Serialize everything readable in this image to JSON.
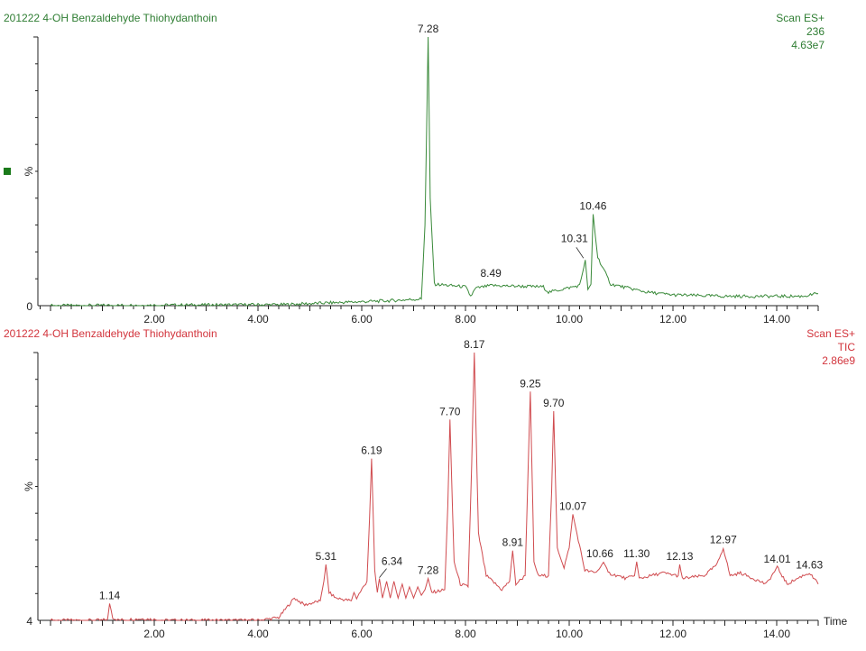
{
  "window": {
    "marker_color": "#1a7a1a"
  },
  "panels": [
    {
      "id": "top",
      "title": "201222 4-OH Benzaldehyde Thiohydanthoin",
      "header_right": [
        "Scan ES+",
        "236",
        "4.63e7"
      ],
      "color": "#3a8a3a",
      "text_color": "#2e7d32",
      "y_axis_label": "%",
      "y_origin_label": "0"
    },
    {
      "id": "bottom",
      "title": "201222 4-OH Benzaldehyde Thiohydanthoin",
      "header_right": [
        "Scan ES+",
        "TIC",
        "2.86e9"
      ],
      "color": "#d04b4f",
      "text_color": "#d2343c",
      "y_axis_label": "%",
      "y_origin_label": "4",
      "x_axis_title": "Time"
    }
  ],
  "chart_data": [
    {
      "type": "line",
      "title": "201222 4-OH Benzaldehyde Thiohydanthoin",
      "subtitle": "Scan ES+ 236 4.63e7",
      "xlabel": "Time",
      "ylabel": "%",
      "xlim": [
        0.0,
        15.0
      ],
      "ylim": [
        0,
        100
      ],
      "x_ticks": [
        "2.00",
        "4.00",
        "6.00",
        "8.00",
        "10.00",
        "12.00",
        "14.00"
      ],
      "grid": false,
      "peaks": [
        {
          "rt": 7.28,
          "label": "7.28",
          "height": 100
        },
        {
          "rt": 8.49,
          "label": "8.49",
          "height": 9
        },
        {
          "rt": 10.31,
          "label": "10.31",
          "height": 17
        },
        {
          "rt": 10.46,
          "label": "10.46",
          "height": 34
        }
      ],
      "series": [
        {
          "name": "m/z 236",
          "x": [
            0.0,
            4.5,
            5.3,
            6.5,
            7.15,
            7.22,
            7.28,
            7.32,
            7.4,
            8.0,
            8.1,
            8.2,
            8.5,
            9.5,
            9.6,
            10.2,
            10.31,
            10.36,
            10.42,
            10.46,
            10.55,
            10.8,
            11.5,
            12.0,
            13.0,
            14.5,
            14.8
          ],
          "y": [
            0.0,
            0.4,
            1.0,
            1.8,
            2.5,
            30,
            100,
            40,
            8,
            7,
            3.5,
            6.5,
            7.5,
            7,
            5,
            7.5,
            17,
            6,
            8,
            34,
            18,
            8,
            5,
            4,
            3.5,
            3.5,
            4.5
          ]
        }
      ]
    },
    {
      "type": "line",
      "title": "201222 4-OH Benzaldehyde Thiohydanthoin",
      "subtitle": "Scan ES+ TIC 2.86e9",
      "xlabel": "Time",
      "ylabel": "%",
      "xlim": [
        0.0,
        15.0
      ],
      "ylim": [
        4,
        100
      ],
      "x_ticks": [
        "2.00",
        "4.00",
        "6.00",
        "8.00",
        "10.00",
        "12.00",
        "14.00"
      ],
      "grid": false,
      "peaks": [
        {
          "rt": 1.14,
          "label": "1.14",
          "height": 10
        },
        {
          "rt": 5.31,
          "label": "5.31",
          "height": 24
        },
        {
          "rt": 6.19,
          "label": "6.19",
          "height": 62
        },
        {
          "rt": 6.34,
          "label": "6.34",
          "height": 19
        },
        {
          "rt": 7.28,
          "label": "7.28",
          "height": 19
        },
        {
          "rt": 7.7,
          "label": "7.70",
          "height": 76
        },
        {
          "rt": 8.17,
          "label": "8.17",
          "height": 100
        },
        {
          "rt": 8.91,
          "label": "8.91",
          "height": 29
        },
        {
          "rt": 9.25,
          "label": "9.25",
          "height": 86
        },
        {
          "rt": 9.7,
          "label": "9.70",
          "height": 79
        },
        {
          "rt": 10.07,
          "label": "10.07",
          "height": 42
        },
        {
          "rt": 10.66,
          "label": "10.66",
          "height": 25
        },
        {
          "rt": 11.3,
          "label": "11.30",
          "height": 25
        },
        {
          "rt": 12.13,
          "label": "12.13",
          "height": 24
        },
        {
          "rt": 12.97,
          "label": "12.97",
          "height": 30
        },
        {
          "rt": 14.01,
          "label": "14.01",
          "height": 23
        },
        {
          "rt": 14.63,
          "label": "14.63",
          "height": 21
        }
      ],
      "series": [
        {
          "name": "TIC",
          "x": [
            0.0,
            1.0,
            1.1,
            1.14,
            1.2,
            1.3,
            1.8,
            2.2,
            4.0,
            4.4,
            4.7,
            4.9,
            5.2,
            5.27,
            5.31,
            5.37,
            5.5,
            5.8,
            5.85,
            5.9,
            6.1,
            6.15,
            6.19,
            6.25,
            6.3,
            6.34,
            6.4,
            6.48,
            6.55,
            6.62,
            6.7,
            6.78,
            6.85,
            6.92,
            7.0,
            7.08,
            7.15,
            7.22,
            7.28,
            7.35,
            7.6,
            7.66,
            7.7,
            7.78,
            7.9,
            8.05,
            8.12,
            8.17,
            8.25,
            8.4,
            8.7,
            8.85,
            8.91,
            8.97,
            9.15,
            9.21,
            9.25,
            9.32,
            9.4,
            9.6,
            9.66,
            9.7,
            9.77,
            9.9,
            10.0,
            10.07,
            10.15,
            10.3,
            10.5,
            10.6,
            10.66,
            10.75,
            11.1,
            11.26,
            11.3,
            11.35,
            11.8,
            12.1,
            12.13,
            12.18,
            12.6,
            12.85,
            12.97,
            13.1,
            13.3,
            13.8,
            14.01,
            14.2,
            14.5,
            14.63,
            14.8
          ],
          "y": [
            4.0,
            4.0,
            4.5,
            10,
            5,
            4.1,
            4.6,
            4.0,
            4.0,
            5.0,
            12,
            9.5,
            11,
            18,
            24,
            14,
            12,
            11,
            14,
            12,
            18,
            40,
            62,
            22,
            14,
            19,
            12,
            18,
            12,
            18,
            12,
            17,
            12,
            16,
            12,
            16,
            13,
            15,
            19,
            14,
            15,
            45,
            76,
            25,
            17,
            16,
            60,
            100,
            35,
            20,
            15,
            18,
            29,
            17,
            20,
            60,
            86,
            25,
            20,
            20,
            50,
            79,
            30,
            23,
            30,
            42,
            35,
            22,
            21,
            23,
            25,
            21,
            19,
            20,
            25,
            19,
            21,
            20,
            24,
            19,
            20,
            24,
            30,
            20,
            21,
            17,
            23,
            17,
            20,
            21,
            17
          ]
        }
      ]
    }
  ]
}
